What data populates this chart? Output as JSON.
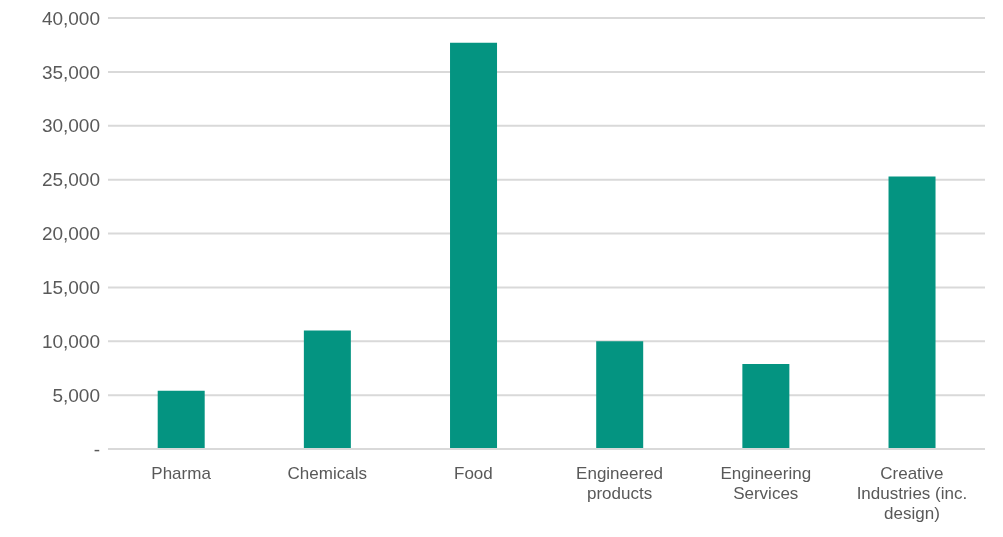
{
  "chart_data": {
    "type": "bar",
    "categories": [
      "Pharma",
      "Chemicals",
      "Food",
      "Engineered products",
      "Engineering Services",
      "Creative Industries (inc. design)"
    ],
    "values": [
      5400,
      11000,
      37700,
      10000,
      7900,
      25300
    ],
    "color": "#049481",
    "ylim": [
      0,
      40000
    ],
    "yticks": [
      {
        "value": 0,
        "label": "-"
      },
      {
        "value": 5000,
        "label": "5,000"
      },
      {
        "value": 10000,
        "label": "10,000"
      },
      {
        "value": 15000,
        "label": "15,000"
      },
      {
        "value": 20000,
        "label": "20,000"
      },
      {
        "value": 25000,
        "label": "25,000"
      },
      {
        "value": 30000,
        "label": "30,000"
      },
      {
        "value": 35000,
        "label": "35,000"
      },
      {
        "value": 40000,
        "label": "40,000"
      }
    ],
    "grid": "y"
  }
}
